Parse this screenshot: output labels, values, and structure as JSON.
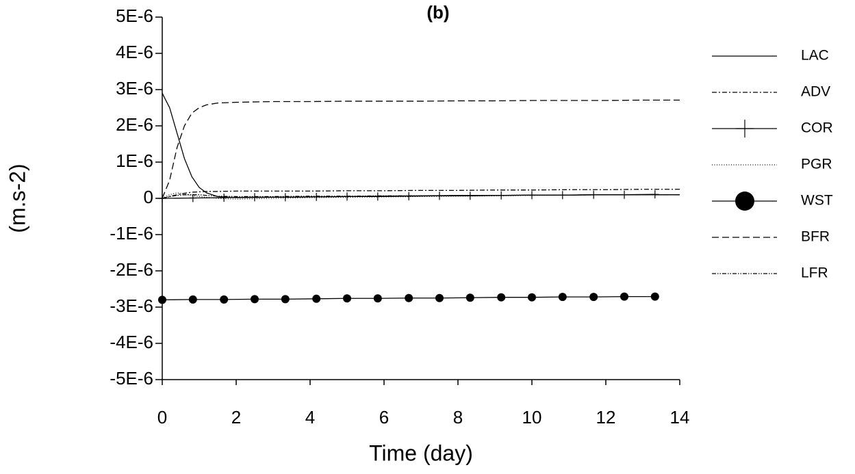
{
  "chart_data": {
    "type": "line",
    "title": "(b)",
    "x_label": "Time (day)",
    "y_label": "(m.s-2)",
    "x": [
      0,
      0.2,
      0.4,
      0.6,
      0.8,
      1,
      1.2,
      1.5,
      2,
      3,
      4,
      5,
      6,
      7,
      8,
      9,
      10,
      11,
      12,
      13,
      14
    ],
    "xlim": [
      0,
      14
    ],
    "xticks": [
      0,
      2,
      4,
      6,
      8,
      10,
      12,
      14
    ],
    "ylim": [
      -5e-06,
      5e-06
    ],
    "yticks": [
      {
        "value": 5e-06,
        "label": "5E-6"
      },
      {
        "value": 4e-06,
        "label": "4E-6"
      },
      {
        "value": 3e-06,
        "label": "3E-6"
      },
      {
        "value": 2e-06,
        "label": "2E-6"
      },
      {
        "value": 1e-06,
        "label": "1E-6"
      },
      0,
      {
        "value": -1e-06,
        "label": "-1E-6"
      },
      {
        "value": -2e-06,
        "label": "-2E-6"
      },
      {
        "value": -3e-06,
        "label": "-3E-6"
      },
      {
        "value": -4e-06,
        "label": "-4E-6"
      },
      {
        "value": -5e-06,
        "label": "-5E-6"
      }
    ],
    "series": [
      {
        "name": "LAC",
        "color": "#000000",
        "dash": "solid",
        "values": [
          2.9e-06,
          2.5e-06,
          1.8e-06,
          1.1e-06,
          6e-07,
          3e-07,
          1.5e-07,
          5e-08,
          2e-08,
          3e-08,
          4e-08,
          5e-08,
          6e-08,
          7e-08,
          8e-08,
          8e-08,
          9e-08,
          9e-08,
          1e-07,
          1e-07,
          1e-07
        ]
      },
      {
        "name": "ADV",
        "color": "#000000",
        "dash": "dashdot",
        "values": [
          0,
          5e-08,
          1e-07,
          1.4e-07,
          1.7e-07,
          1.8e-07,
          1.9e-07,
          1.9e-07,
          2e-07,
          2e-07,
          2e-07,
          2.1e-07,
          2.1e-07,
          2.2e-07,
          2.2e-07,
          2.3e-07,
          2.3e-07,
          2.4e-07,
          2.4e-07,
          2.5e-07,
          2.5e-07
        ]
      },
      {
        "name": "COR",
        "color": "#000000",
        "dash": "solid",
        "marker": "plus",
        "x": [
          0,
          0.83,
          1.67,
          2.5,
          3.33,
          4.17,
          5,
          5.83,
          6.67,
          7.5,
          8.33,
          9.17,
          10,
          10.83,
          11.67,
          12.5,
          13.33
        ],
        "values": [
          0,
          1e-08,
          2e-08,
          3e-08,
          3e-08,
          4e-08,
          5e-08,
          5e-08,
          6e-08,
          7e-08,
          7e-08,
          8e-08,
          9e-08,
          9e-08,
          1e-07,
          1e-07,
          1.1e-07
        ]
      },
      {
        "name": "PGR",
        "color": "#000000",
        "dash": "dot",
        "values": [
          0,
          1e-07,
          1.5e-07,
          1.2e-07,
          8e-08,
          5e-08,
          3e-08,
          0,
          -2e-08,
          0,
          2e-08,
          3e-08,
          4e-08,
          5e-08,
          6e-08,
          7e-08,
          8e-08,
          9e-08,
          1e-07,
          1e-07,
          1e-07
        ]
      },
      {
        "name": "WST",
        "color": "#000000",
        "dash": "solid",
        "marker": "circle",
        "x": [
          0,
          0.83,
          1.67,
          2.5,
          3.33,
          4.17,
          5,
          5.83,
          6.67,
          7.5,
          8.33,
          9.17,
          10,
          10.83,
          11.67,
          12.5,
          13.33
        ],
        "values": [
          -2.8e-06,
          -2.79e-06,
          -2.79e-06,
          -2.78e-06,
          -2.78e-06,
          -2.77e-06,
          -2.76e-06,
          -2.76e-06,
          -2.75e-06,
          -2.75e-06,
          -2.74e-06,
          -2.73e-06,
          -2.73e-06,
          -2.72e-06,
          -2.72e-06,
          -2.71e-06,
          -2.71e-06
        ]
      },
      {
        "name": "BFR",
        "color": "#000000",
        "dash": "dash",
        "values": [
          0,
          5e-07,
          1.4e-06,
          2e-06,
          2.35e-06,
          2.5e-06,
          2.58e-06,
          2.63e-06,
          2.65e-06,
          2.67e-06,
          2.67e-06,
          2.68e-06,
          2.68e-06,
          2.68e-06,
          2.69e-06,
          2.69e-06,
          2.7e-06,
          2.7e-06,
          2.7e-06,
          2.71e-06,
          2.71e-06
        ]
      },
      {
        "name": "LFR",
        "color": "#000000",
        "dash": "dashdotdot",
        "values": [
          0,
          5e-08,
          8e-08,
          1e-07,
          1e-07,
          1e-07,
          8e-08,
          6e-08,
          5e-08,
          5e-08,
          6e-08,
          6e-08,
          7e-08,
          7e-08,
          8e-08,
          8e-08,
          9e-08,
          9e-08,
          1e-07,
          1e-07,
          1e-07
        ]
      }
    ]
  }
}
